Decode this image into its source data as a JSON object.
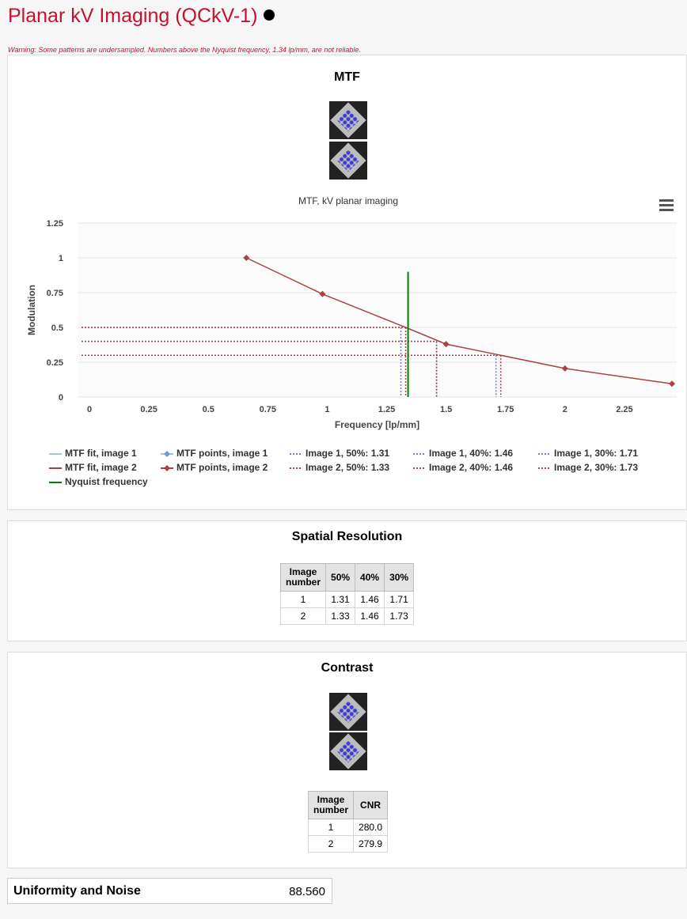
{
  "header": {
    "title": "Planar kV Imaging (QCkV-1)",
    "warning": "Warning: Some patterns are undersampled. Numbers above the Nyquist frequency, 1.34 lp/mm, are not reliable."
  },
  "mtf_panel": {
    "title": "MTF",
    "menu_icon": "hamburger-menu-icon"
  },
  "chart_data": {
    "type": "line",
    "title": "MTF, kV planar imaging",
    "xlabel": "Frequency [lp/mm]",
    "ylabel": "Modulation",
    "xlim": [
      -0.05,
      2.47
    ],
    "ylim": [
      0,
      1.25
    ],
    "xticks": [
      "0",
      "0.25",
      "0.5",
      "0.75",
      "1",
      "1.25",
      "1.5",
      "1.75",
      "2",
      "2.25"
    ],
    "yticks": [
      "0",
      "0.25",
      "0.5",
      "0.75",
      "1",
      "1.25"
    ],
    "series": [
      {
        "name": "MTF fit, image 1",
        "color": "#a9c3dd",
        "x": [],
        "y": []
      },
      {
        "name": "MTF fit, image 2",
        "color": "#a84343",
        "x": [
          0.66,
          0.98,
          1.33,
          1.5,
          1.73,
          2.0,
          2.45
        ],
        "y": [
          1.0,
          0.74,
          0.5,
          0.38,
          0.3,
          0.205,
          0.095
        ]
      },
      {
        "name": "MTF points, image 1",
        "color": "#6f9ad8",
        "x": [],
        "y": []
      },
      {
        "name": "MTF points, image 2",
        "color": "#a84343",
        "x": [
          0.66,
          0.98,
          1.5,
          2.0,
          2.45
        ],
        "y": [
          1.0,
          0.74,
          0.38,
          0.205,
          0.095
        ]
      },
      {
        "name": "Image 1, 50%: 1.31",
        "color": "#7b7bc4",
        "dotted": true,
        "freq": 1.31,
        "level": 0.5
      },
      {
        "name": "Image 1, 40%: 1.46",
        "color": "#7b7bc4",
        "dotted": true,
        "freq": 1.46,
        "level": 0.4
      },
      {
        "name": "Image 1, 30%: 1.71",
        "color": "#7b7bc4",
        "dotted": true,
        "freq": 1.71,
        "level": 0.3
      },
      {
        "name": "Image 2, 50%: 1.33",
        "color": "#a84343",
        "dotted": true,
        "freq": 1.33,
        "level": 0.5
      },
      {
        "name": "Image 2, 40%: 1.46",
        "color": "#a84343",
        "dotted": true,
        "freq": 1.46,
        "level": 0.4
      },
      {
        "name": "Image 2, 30%: 1.73",
        "color": "#a84343",
        "dotted": true,
        "freq": 1.73,
        "level": 0.3
      },
      {
        "name": "Nyquist frequency",
        "color": "#008000",
        "freq": 1.34,
        "level": 0.9
      }
    ]
  },
  "spatial_panel": {
    "title": "Spatial Resolution",
    "headers": [
      "Image number",
      "50%",
      "40%",
      "30%"
    ],
    "rows": [
      [
        "1",
        "1.31",
        "1.46",
        "1.71"
      ],
      [
        "2",
        "1.33",
        "1.46",
        "1.73"
      ]
    ]
  },
  "contrast_panel": {
    "title": "Contrast",
    "headers": [
      "Image number",
      "CNR"
    ],
    "rows": [
      [
        "1",
        "280.0"
      ],
      [
        "2",
        "279.9"
      ]
    ]
  },
  "uniformity": {
    "label": "Uniformity and Noise",
    "value": "88.560"
  }
}
